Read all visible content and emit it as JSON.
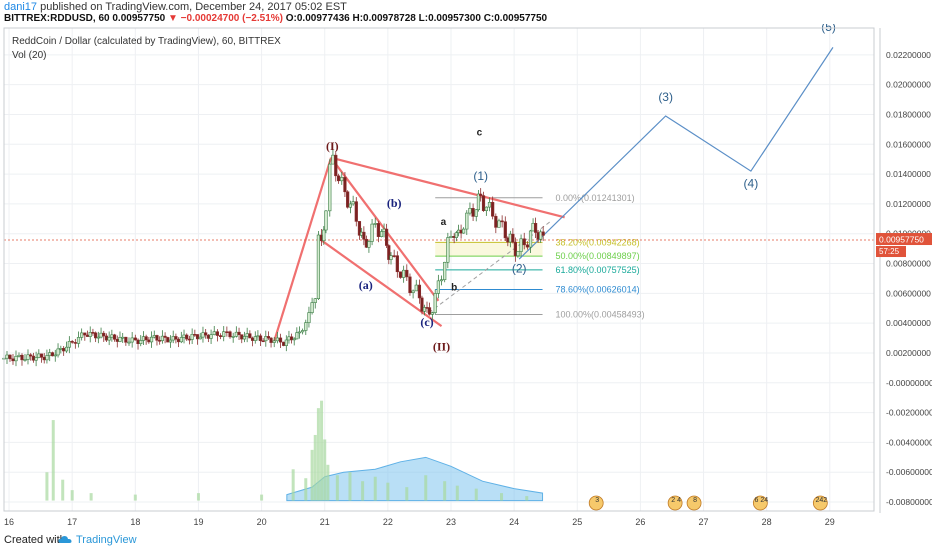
{
  "header": {
    "author": "dani17",
    "published_text": "published on TradingView.com, December 24, 2017 05:02 EST",
    "symbol_line": "BITTREX:RDDUSD, 60",
    "last": "0.00957750",
    "change": "−0.00024700 (−2.51%)",
    "ohlc": "O:0.00977436 H:0.00978728 L:0.00957300 C:0.00957750"
  },
  "footer": {
    "created": "Created with",
    "brand": "TradingView"
  },
  "chart_data": {
    "type": "candlestick",
    "title": "ReddCoin / Dollar (calculated by TradingView), 60, BITTREX",
    "volume_label": "Vol (20)",
    "x_ticks": [
      "16",
      "17",
      "18",
      "19",
      "20",
      "21",
      "22",
      "23",
      "24",
      "25",
      "26",
      "27",
      "28",
      "29"
    ],
    "x_range": [
      15.92,
      29.7
    ],
    "y_ticks": [
      "0.02200000",
      "0.02000000",
      "0.01800000",
      "0.01600000",
      "0.01400000",
      "0.01200000",
      "0.01000000",
      "0.00800000",
      "0.00600000",
      "0.00400000",
      "0.00200000",
      "-0.00000000",
      "-0.00200000",
      "-0.00400000",
      "-0.00600000",
      "-0.00800000"
    ],
    "y_range": [
      -0.0086,
      0.0238
    ],
    "price_line": {
      "value": 0.0095775,
      "label": "0.00957750",
      "countdown": "57:25"
    },
    "price_path": [
      [
        15.92,
        0.00165
      ],
      [
        16.3,
        0.0017
      ],
      [
        16.6,
        0.00175
      ],
      [
        16.82,
        0.0022
      ],
      [
        17.0,
        0.0027
      ],
      [
        17.2,
        0.0033
      ],
      [
        17.5,
        0.0031
      ],
      [
        17.8,
        0.0029
      ],
      [
        18.0,
        0.0028
      ],
      [
        18.3,
        0.003
      ],
      [
        18.6,
        0.0029
      ],
      [
        18.9,
        0.0031
      ],
      [
        19.2,
        0.0032
      ],
      [
        19.4,
        0.0033
      ],
      [
        19.6,
        0.0032
      ],
      [
        19.9,
        0.003
      ],
      [
        20.15,
        0.0029
      ],
      [
        20.35,
        0.0027
      ],
      [
        20.6,
        0.0033
      ],
      [
        20.75,
        0.0045
      ],
      [
        20.85,
        0.0062
      ],
      [
        20.9,
        0.0098
      ],
      [
        20.95,
        0.009
      ],
      [
        21.02,
        0.012
      ],
      [
        21.08,
        0.0143
      ],
      [
        21.13,
        0.0149
      ],
      [
        21.22,
        0.0138
      ],
      [
        21.32,
        0.0127
      ],
      [
        21.45,
        0.0116
      ],
      [
        21.55,
        0.0104
      ],
      [
        21.62,
        0.0092
      ],
      [
        21.7,
        0.0098
      ],
      [
        21.8,
        0.0105
      ],
      [
        21.9,
        0.0102
      ],
      [
        21.98,
        0.0093
      ],
      [
        22.05,
        0.0083
      ],
      [
        22.15,
        0.0078
      ],
      [
        22.25,
        0.0071
      ],
      [
        22.4,
        0.0063
      ],
      [
        22.5,
        0.0057
      ],
      [
        22.58,
        0.005
      ],
      [
        22.66,
        0.0047
      ],
      [
        22.75,
        0.0056
      ],
      [
        22.85,
        0.0074
      ],
      [
        22.95,
        0.0092
      ],
      [
        23.05,
        0.0103
      ],
      [
        23.12,
        0.0097
      ],
      [
        23.2,
        0.0108
      ],
      [
        23.3,
        0.0113
      ],
      [
        23.4,
        0.0119
      ],
      [
        23.47,
        0.0124
      ],
      [
        23.56,
        0.0118
      ],
      [
        23.66,
        0.0113
      ],
      [
        23.76,
        0.0106
      ],
      [
        23.86,
        0.0101
      ],
      [
        23.98,
        0.0092
      ],
      [
        24.06,
        0.0089
      ],
      [
        24.16,
        0.0093
      ],
      [
        24.26,
        0.01
      ],
      [
        24.34,
        0.0104
      ],
      [
        24.42,
        0.0097
      ],
      [
        24.46,
        0.00958
      ]
    ],
    "volume": {
      "baseline": -0.0079,
      "scale_max": -0.0008,
      "bars": [
        [
          16.6,
          -0.006
        ],
        [
          16.7,
          -0.0025
        ],
        [
          16.85,
          -0.0065
        ],
        [
          17.0,
          -0.0072
        ],
        [
          17.3,
          -0.0074
        ],
        [
          18.0,
          -0.0075
        ],
        [
          19.0,
          -0.0074
        ],
        [
          20.0,
          -0.0075
        ],
        [
          20.5,
          -0.0058
        ],
        [
          20.7,
          -0.0064
        ],
        [
          20.8,
          -0.0045
        ],
        [
          20.85,
          -0.0035
        ],
        [
          20.9,
          -0.0017
        ],
        [
          20.95,
          -0.0012
        ],
        [
          21.0,
          -0.0038
        ],
        [
          21.05,
          -0.0055
        ],
        [
          21.2,
          -0.0062
        ],
        [
          21.4,
          -0.006
        ],
        [
          21.6,
          -0.0066
        ],
        [
          21.8,
          -0.0063
        ],
        [
          22.0,
          -0.0067
        ],
        [
          22.3,
          -0.007
        ],
        [
          22.6,
          -0.0062
        ],
        [
          22.9,
          -0.0066
        ],
        [
          23.1,
          -0.0069
        ],
        [
          23.4,
          -0.0071
        ],
        [
          23.8,
          -0.0074
        ],
        [
          24.2,
          -0.0076
        ]
      ],
      "ma_area": [
        [
          20.4,
          -0.0075
        ],
        [
          20.8,
          -0.007
        ],
        [
          21.0,
          -0.0063
        ],
        [
          21.3,
          -0.006
        ],
        [
          21.8,
          -0.0058
        ],
        [
          22.2,
          -0.0053
        ],
        [
          22.6,
          -0.005
        ],
        [
          23.0,
          -0.0056
        ],
        [
          23.5,
          -0.0066
        ],
        [
          24.0,
          -0.0071
        ],
        [
          24.45,
          -0.0074
        ]
      ]
    },
    "wave_labels": [
      {
        "text": "(I)",
        "x": 21.12,
        "y": 0.0156,
        "color": "#6d1b1b"
      },
      {
        "text": "(II)",
        "x": 22.85,
        "y": 0.00215,
        "color": "#6d1b1b"
      },
      {
        "text": "(a)",
        "x": 21.65,
        "y": 0.0063,
        "color": "#1a237e"
      },
      {
        "text": "(b)",
        "x": 22.1,
        "y": 0.0118,
        "color": "#1a237e"
      },
      {
        "text": "(c)",
        "x": 22.62,
        "y": 0.0038,
        "color": "#1a237e"
      },
      {
        "text": "a",
        "x": 22.88,
        "y": 0.0106,
        "color": "#222222"
      },
      {
        "text": "b",
        "x": 23.05,
        "y": 0.0062,
        "color": "#222222"
      },
      {
        "text": "c",
        "x": 23.45,
        "y": 0.0166,
        "color": "#222222"
      },
      {
        "text": "(1)",
        "x": 23.47,
        "y": 0.0136,
        "color": "#2d5f8b"
      },
      {
        "text": "(2)",
        "x": 24.08,
        "y": 0.0074,
        "color": "#2d5f8b"
      },
      {
        "text": "(3)",
        "x": 26.4,
        "y": 0.0189,
        "color": "#2d5f8b"
      },
      {
        "text": "(4)",
        "x": 27.75,
        "y": 0.0131,
        "color": "#2d5f8b"
      },
      {
        "text": "(5)",
        "x": 28.98,
        "y": 0.0236,
        "color": "#2d5f8b"
      }
    ],
    "projection": [
      [
        24.08,
        0.0083
      ],
      [
        26.4,
        0.0179
      ],
      [
        27.75,
        0.0142
      ],
      [
        29.05,
        0.0225
      ]
    ],
    "fib_levels": [
      {
        "label": "0.00%(0.01241301)",
        "value": 0.01241301,
        "color": "#9e9e9e"
      },
      {
        "label": "38.20%(0.00942268)",
        "value": 0.00942268,
        "color": "#c6c02b"
      },
      {
        "label": "50.00%(0.00849897)",
        "value": 0.00849897,
        "color": "#6ccf4a"
      },
      {
        "label": "61.80%(0.00757525)",
        "value": 0.00757525,
        "color": "#19a99a"
      },
      {
        "label": "78.60%(0.00626014)",
        "value": 0.00626014,
        "color": "#2e8bd1"
      },
      {
        "label": "100.00%(0.00458493)",
        "value": 0.00458493,
        "color": "#9e9e9e"
      }
    ],
    "fib_range": [
      22.75,
      24.45
    ],
    "trend_lines": [
      {
        "from": [
          20.2,
          0.0028
        ],
        "to": [
          21.1,
          0.0151
        ],
        "color": "#f07070"
      },
      {
        "from": [
          21.1,
          0.0151
        ],
        "to": [
          22.8,
          0.0055
        ],
        "color": "#f07070"
      },
      {
        "from": [
          20.9,
          0.0097
        ],
        "to": [
          22.85,
          0.0038
        ],
        "color": "#f07070"
      },
      {
        "from": [
          21.1,
          0.0151
        ],
        "to": [
          24.8,
          0.0111
        ],
        "color": "#f07070"
      }
    ],
    "dashed_line": {
      "from": [
        22.65,
        0.0047
      ],
      "to": [
        24.6,
        0.0109
      ]
    },
    "event_markers": [
      {
        "x": 25.3,
        "label": "3"
      },
      {
        "x": 26.55,
        "label": "2 4"
      },
      {
        "x": 26.85,
        "label": "8"
      },
      {
        "x": 27.9,
        "label": "6 24"
      },
      {
        "x": 28.85,
        "label": "242"
      }
    ],
    "grid": true
  }
}
